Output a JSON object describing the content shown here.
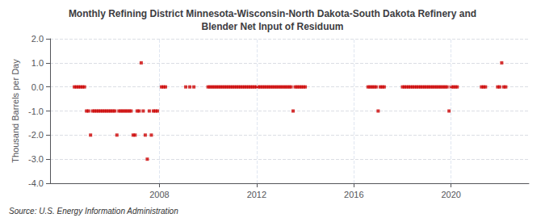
{
  "chart_data": {
    "type": "scatter",
    "title": "Monthly Refining District Minnesota-Wisconsin-North Dakota-South Dakota Refinery and\nBlender Net Input of Residuum",
    "ylabel": "Thousand Barrels per Day",
    "source": "Source: U.S. Energy Information Administration",
    "color": "#cc0000",
    "marker": "square",
    "grid": true,
    "xlim": [
      2003.5,
      2023.2
    ],
    "xticks": [
      2008,
      2012,
      2016,
      2020
    ],
    "ylim": [
      -4.0,
      2.0
    ],
    "yticks": [
      {
        "value": -4.0,
        "label": "-4.0"
      },
      {
        "value": -3.0,
        "label": "-3.0"
      },
      {
        "value": -2.0,
        "label": "-2.0"
      },
      {
        "value": -1.0,
        "label": "-1.0"
      },
      {
        "value": 0.0,
        "label": "0.0"
      },
      {
        "value": 1.0,
        "label": "1.0"
      },
      {
        "value": 2.0,
        "label": "2.0"
      }
    ],
    "x": [
      2004.5,
      2004.583,
      2004.667,
      2004.75,
      2004.833,
      2004.917,
      2005.0,
      2005.083,
      2005.167,
      2005.25,
      2005.333,
      2005.417,
      2005.5,
      2005.583,
      2005.667,
      2005.75,
      2005.833,
      2005.917,
      2006.0,
      2006.083,
      2006.167,
      2006.25,
      2006.333,
      2006.417,
      2006.5,
      2006.583,
      2006.667,
      2006.75,
      2006.833,
      2006.917,
      2007.0,
      2007.083,
      2007.167,
      2007.25,
      2007.333,
      2007.417,
      2007.5,
      2007.583,
      2007.667,
      2007.75,
      2007.833,
      2007.917,
      2008.083,
      2008.167,
      2008.25,
      2009.083,
      2009.25,
      2009.417,
      2010.0,
      2010.083,
      2010.167,
      2010.25,
      2010.333,
      2010.417,
      2010.5,
      2010.583,
      2010.667,
      2010.75,
      2010.833,
      2010.917,
      2011.0,
      2011.083,
      2011.167,
      2011.25,
      2011.333,
      2011.417,
      2011.5,
      2011.583,
      2011.667,
      2011.75,
      2011.833,
      2011.917,
      2012.0,
      2012.083,
      2012.167,
      2012.25,
      2012.333,
      2012.417,
      2012.5,
      2012.583,
      2012.667,
      2012.75,
      2012.833,
      2012.917,
      2013.0,
      2013.083,
      2013.167,
      2013.25,
      2013.333,
      2013.417,
      2013.5,
      2013.583,
      2013.667,
      2013.75,
      2013.833,
      2013.917,
      2014.0,
      2016.583,
      2016.667,
      2016.75,
      2016.833,
      2016.917,
      2017.0,
      2017.083,
      2017.167,
      2017.25,
      2018.0,
      2018.083,
      2018.167,
      2018.25,
      2018.333,
      2018.417,
      2018.5,
      2018.583,
      2018.667,
      2018.75,
      2018.833,
      2018.917,
      2019.0,
      2019.083,
      2019.167,
      2019.25,
      2019.333,
      2019.417,
      2019.5,
      2019.583,
      2019.667,
      2019.75,
      2019.833,
      2019.917,
      2020.0,
      2020.083,
      2020.167,
      2020.25,
      2021.25,
      2021.333,
      2021.417,
      2021.917,
      2022.0,
      2022.083,
      2022.167,
      2022.25
    ],
    "values": [
      0.0,
      0.0,
      0.0,
      0.0,
      0.0,
      0.0,
      -1.0,
      -1.0,
      -2.0,
      -1.0,
      -1.0,
      -1.0,
      -1.0,
      -1.0,
      -1.0,
      -1.0,
      -1.0,
      -1.0,
      -1.0,
      -1.0,
      -1.0,
      -2.0,
      -1.0,
      -1.0,
      -1.0,
      -1.0,
      -1.0,
      -1.0,
      -1.0,
      -2.0,
      -2.0,
      -1.0,
      -1.0,
      1.0,
      -1.0,
      -2.0,
      -3.0,
      -1.0,
      -2.0,
      -1.0,
      -1.0,
      -1.0,
      0.0,
      0.0,
      0.0,
      0.0,
      0.0,
      0.0,
      0.0,
      0.0,
      0.0,
      0.0,
      0.0,
      0.0,
      0.0,
      0.0,
      0.0,
      0.0,
      0.0,
      0.0,
      0.0,
      0.0,
      0.0,
      0.0,
      0.0,
      0.0,
      0.0,
      0.0,
      0.0,
      0.0,
      0.0,
      0.0,
      0.0,
      0.0,
      0.0,
      0.0,
      0.0,
      0.0,
      0.0,
      0.0,
      0.0,
      0.0,
      0.0,
      0.0,
      0.0,
      0.0,
      0.0,
      0.0,
      0.0,
      0.0,
      -1.0,
      0.0,
      0.0,
      0.0,
      0.0,
      0.0,
      0.0,
      0.0,
      0.0,
      0.0,
      0.0,
      0.0,
      -1.0,
      0.0,
      0.0,
      0.0,
      0.0,
      0.0,
      0.0,
      0.0,
      0.0,
      0.0,
      0.0,
      0.0,
      0.0,
      0.0,
      0.0,
      0.0,
      0.0,
      0.0,
      0.0,
      0.0,
      0.0,
      0.0,
      0.0,
      0.0,
      0.0,
      0.0,
      0.0,
      -1.0,
      0.0,
      0.0,
      0.0,
      0.0,
      0.0,
      0.0,
      0.0,
      0.0,
      0.0,
      1.0,
      0.0,
      0.0
    ]
  }
}
